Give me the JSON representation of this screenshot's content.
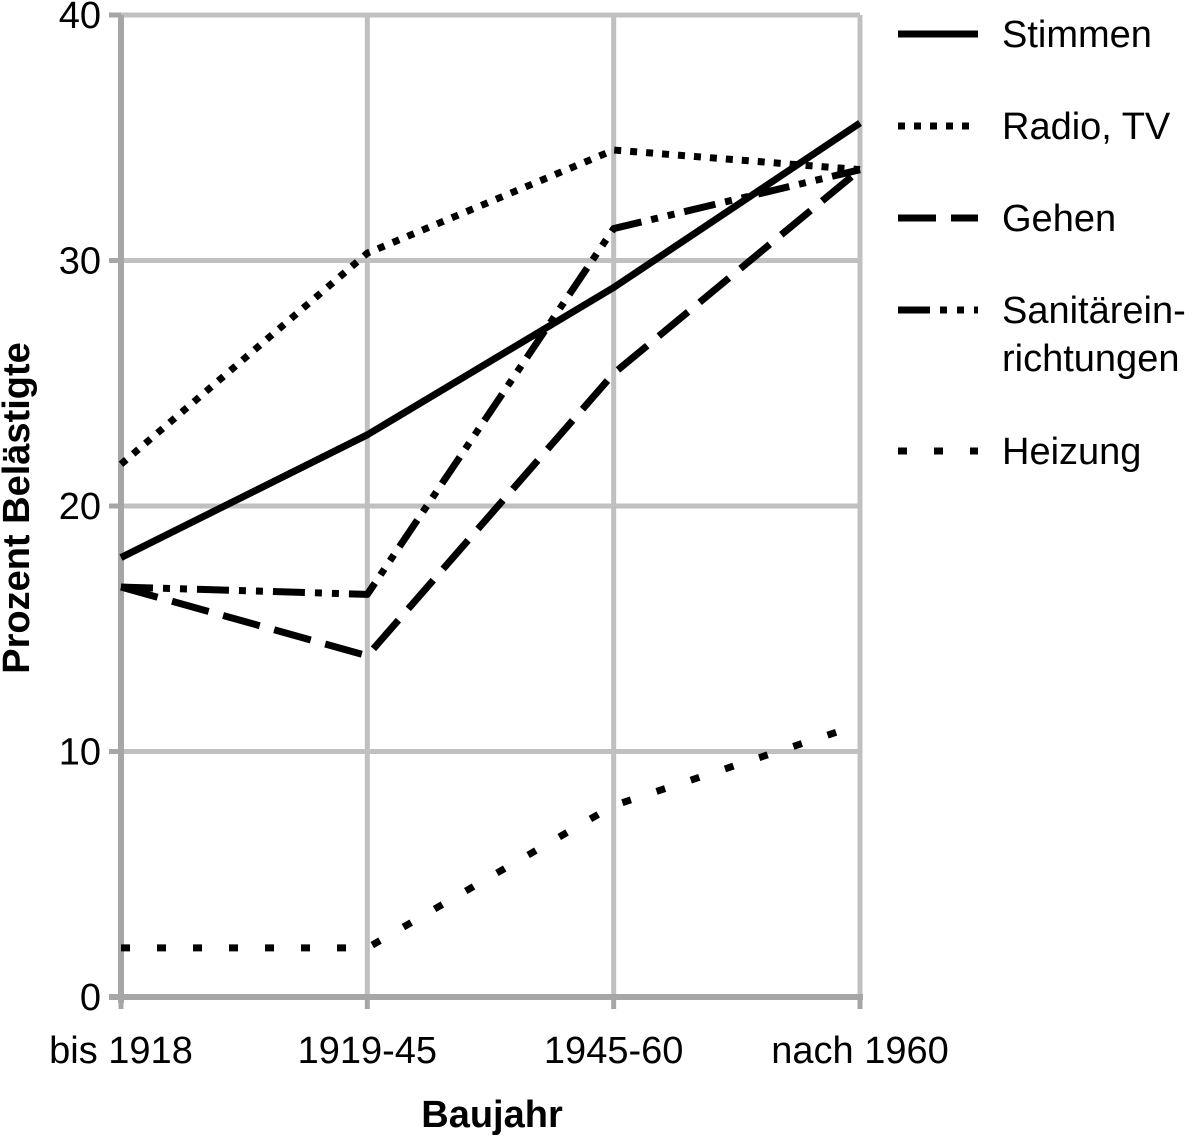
{
  "chart_data": {
    "type": "line",
    "categories": [
      "bis 1918",
      "1919-45",
      "1945-60",
      "nach 1960"
    ],
    "xlabel": "Baujahr",
    "ylabel": "Prozent Belästigte",
    "ylim": [
      0,
      40
    ],
    "yticks": [
      "0",
      "10",
      "20",
      "30",
      "40"
    ],
    "grid": true,
    "legend_position": "right",
    "series": [
      {
        "name": "Stimmen",
        "values": [
          17.9,
          22.9,
          28.9,
          35.6
        ],
        "style": "solid"
      },
      {
        "name": "Radio, TV",
        "values": [
          21.7,
          30.3,
          34.5,
          33.7
        ],
        "style": "dotted"
      },
      {
        "name": "Gehen",
        "values": [
          16.7,
          13.9,
          25.4,
          33.7
        ],
        "style": "dashed"
      },
      {
        "name": "Sanitärein-\nrichtungen",
        "values": [
          16.7,
          16.4,
          31.3,
          33.7
        ],
        "style": "dashdotdot"
      },
      {
        "name": "Heizung",
        "values": [
          2.0,
          2.0,
          7.8,
          11.1
        ],
        "style": "sparse-dotted"
      }
    ],
    "colors": {
      "lines": "#000000",
      "grid": "#c0c0c0",
      "axis": "#a6a6a6"
    }
  }
}
